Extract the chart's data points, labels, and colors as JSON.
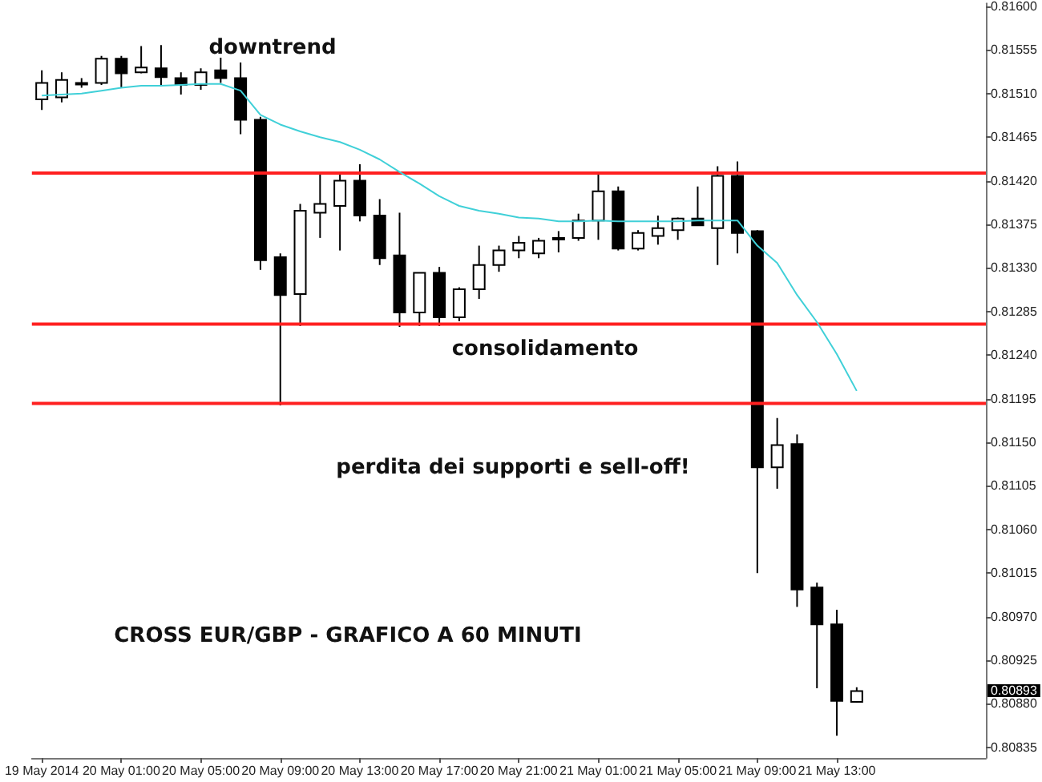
{
  "chart_data": {
    "type": "candlestick",
    "categories": [
      "19 May 2014",
      null,
      null,
      null,
      "20 May 01:00",
      null,
      null,
      null,
      "20 May 05:00",
      null,
      null,
      null,
      "20 May 09:00",
      null,
      null,
      null,
      "20 May 13:00",
      null,
      null,
      null,
      "20 May 17:00",
      null,
      null,
      null,
      "20 May 21:00",
      null,
      null,
      null,
      "21 May 01:00",
      null,
      null,
      null,
      "21 May 05:00",
      null,
      null,
      null,
      "21 May 09:00",
      null,
      null,
      null,
      "21 May 13:00",
      null,
      null,
      null,
      null,
      null,
      null,
      null
    ],
    "ohlc": [
      [
        0.81504,
        0.81534,
        0.81493,
        0.81521
      ],
      [
        0.81506,
        0.81532,
        0.81501,
        0.81524
      ],
      [
        0.81521,
        0.81526,
        0.81516,
        0.81521
      ],
      [
        0.81521,
        0.81549,
        0.81519,
        0.81546
      ],
      [
        0.81546,
        0.81549,
        0.81516,
        0.81531
      ],
      [
        0.81532,
        0.81559,
        0.81531,
        0.81537
      ],
      [
        0.81536,
        0.8156,
        0.81519,
        0.81527
      ],
      [
        0.81526,
        0.81532,
        0.81509,
        0.81519
      ],
      [
        0.81519,
        0.81536,
        0.81514,
        0.81532
      ],
      [
        0.81534,
        0.81547,
        0.81521,
        0.81526
      ],
      [
        0.81526,
        0.81542,
        0.81468,
        0.81483
      ],
      [
        0.81483,
        0.81486,
        0.81328,
        0.81338
      ],
      [
        0.81341,
        0.81345,
        0.81188,
        0.81302
      ],
      [
        0.81303,
        0.81396,
        0.8127,
        0.81389
      ],
      [
        0.81387,
        0.81427,
        0.81361,
        0.81396
      ],
      [
        0.81394,
        0.81427,
        0.81348,
        0.8142
      ],
      [
        0.8142,
        0.81437,
        0.81378,
        0.81384
      ],
      [
        0.81384,
        0.81401,
        0.81333,
        0.8134
      ],
      [
        0.81343,
        0.81387,
        0.81269,
        0.81284
      ],
      [
        0.81284,
        0.81325,
        0.8127,
        0.81325
      ],
      [
        0.81325,
        0.81331,
        0.8127,
        0.81279
      ],
      [
        0.81279,
        0.8131,
        0.81275,
        0.81308
      ],
      [
        0.81308,
        0.81353,
        0.81298,
        0.81333
      ],
      [
        0.81333,
        0.81353,
        0.81326,
        0.81348
      ],
      [
        0.81348,
        0.81363,
        0.8134,
        0.81356
      ],
      [
        0.81345,
        0.81361,
        0.8134,
        0.81358
      ],
      [
        0.81361,
        0.81368,
        0.81346,
        0.81361
      ],
      [
        0.81361,
        0.81386,
        0.81358,
        0.81379
      ],
      [
        0.81379,
        0.81427,
        0.81359,
        0.81409
      ],
      [
        0.81409,
        0.81414,
        0.81348,
        0.8135
      ],
      [
        0.8135,
        0.81369,
        0.81348,
        0.81366
      ],
      [
        0.81363,
        0.81384,
        0.81354,
        0.81371
      ],
      [
        0.81369,
        0.81382,
        0.81359,
        0.81381
      ],
      [
        0.81381,
        0.81414,
        0.81374,
        0.81374
      ],
      [
        0.81371,
        0.81435,
        0.81333,
        0.81425
      ],
      [
        0.81425,
        0.8144,
        0.81345,
        0.81366
      ],
      [
        0.81368,
        0.81369,
        0.81015,
        0.81124
      ],
      [
        0.81124,
        0.81175,
        0.81102,
        0.81147
      ],
      [
        0.81148,
        0.81158,
        0.8098,
        0.80998
      ],
      [
        0.81,
        0.81005,
        0.80896,
        0.80962
      ],
      [
        0.80962,
        0.80977,
        0.80847,
        0.80883
      ],
      [
        0.80882,
        0.80897,
        0.80881,
        0.80893
      ],
      null,
      null,
      null,
      null,
      null,
      null
    ],
    "series": [
      {
        "type": "line",
        "color": "#40d0d8",
        "values": [
          0.81508,
          0.81509,
          0.8151,
          0.81513,
          0.81516,
          0.81518,
          0.81518,
          0.81519,
          0.8152,
          0.8152,
          0.81513,
          0.81488,
          0.81478,
          0.81471,
          0.81465,
          0.8146,
          0.81452,
          0.81442,
          0.81429,
          0.81417,
          0.81404,
          0.81394,
          0.81389,
          0.81386,
          0.81382,
          0.81381,
          0.81378,
          0.81378,
          0.81379,
          0.81378,
          0.81378,
          0.81378,
          0.81378,
          0.81379,
          0.81379,
          0.81379,
          0.81353,
          0.81335,
          0.81302,
          0.81274,
          0.81241,
          0.81203,
          null,
          null,
          null,
          null,
          null,
          null
        ]
      }
    ],
    "ylim": [
      0.80824,
      0.81603
    ],
    "yticks": [
      {
        "value": 0.80835,
        "label": "0.80835"
      },
      {
        "value": 0.8088,
        "label": "0.80880"
      },
      {
        "value": 0.80925,
        "label": "0.80925"
      },
      {
        "value": 0.8097,
        "label": "0.80970"
      },
      {
        "value": 0.81015,
        "label": "0.81015"
      },
      {
        "value": 0.8106,
        "label": "0.81060"
      },
      {
        "value": 0.81105,
        "label": "0.81105"
      },
      {
        "value": 0.8115,
        "label": "0.81150"
      },
      {
        "value": 0.81195,
        "label": "0.81195"
      },
      {
        "value": 0.8124,
        "label": "0.81240"
      },
      {
        "value": 0.81285,
        "label": "0.81285"
      },
      {
        "value": 0.8133,
        "label": "0.81330"
      },
      {
        "value": 0.81375,
        "label": "0.81375"
      },
      {
        "value": 0.8142,
        "label": "0.81420"
      },
      {
        "value": 0.81465,
        "label": "0.81465"
      },
      {
        "value": 0.8151,
        "label": "0.81510"
      },
      {
        "value": 0.81555,
        "label": "0.81555"
      },
      {
        "value": 0.816,
        "label": "0.81600"
      }
    ],
    "ref_lines": [
      {
        "axis": "y",
        "value": 0.81428,
        "color": "#ff2020"
      },
      {
        "axis": "y",
        "value": 0.81272,
        "color": "#ff2020"
      },
      {
        "axis": "y",
        "value": 0.8119,
        "color": "#ff2020"
      }
    ],
    "annotations": [
      "downtrend",
      "consolidamento",
      "perdita dei supporti e sell-off!",
      "CROSS EUR/GBP - GRAFICO A 60 MINUTI",
      "0.80893"
    ]
  }
}
